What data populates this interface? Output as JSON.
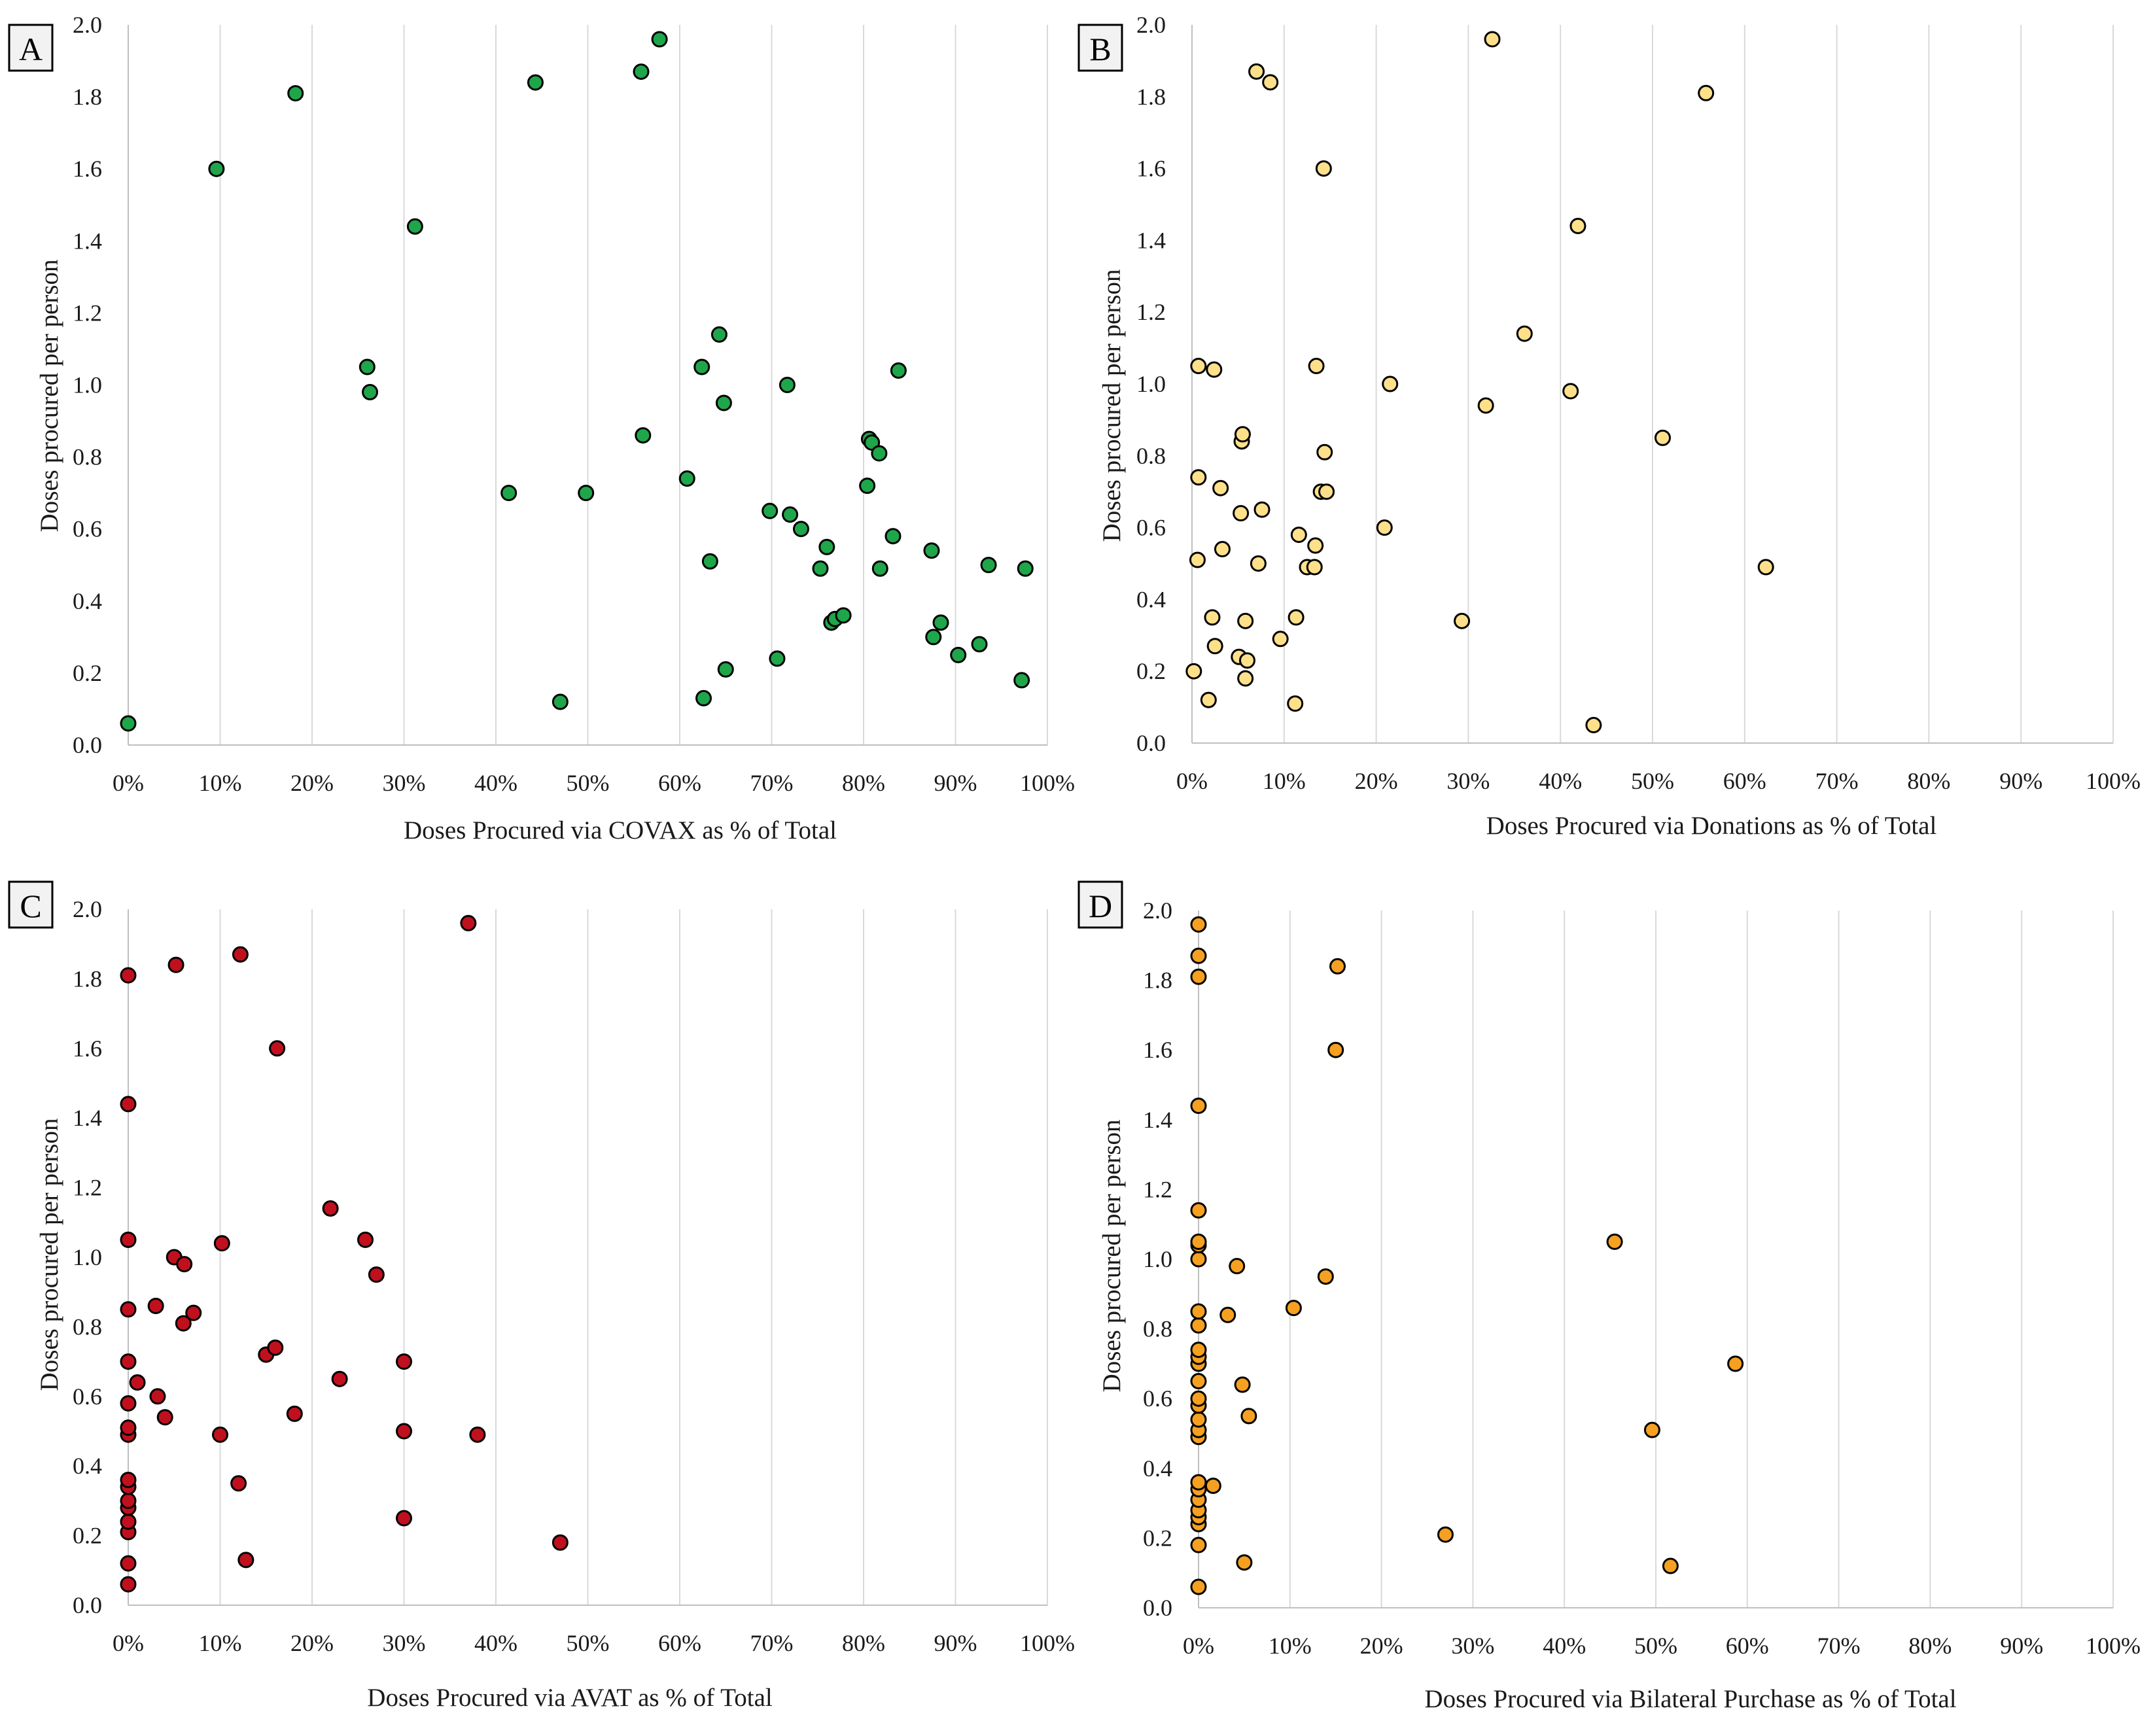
{
  "chart_data": [
    {
      "panel": "A",
      "type": "scatter",
      "xlabel": "Doses Procured via COVAX as % of Total",
      "ylabel": "Doses procured per person",
      "xlim": [
        0,
        100
      ],
      "ylim": [
        0,
        2.0
      ],
      "x_ticks": [
        "0%",
        "10%",
        "20%",
        "30%",
        "40%",
        "50%",
        "60%",
        "70%",
        "80%",
        "90%",
        "100%"
      ],
      "y_ticks": [
        "0.0",
        "0.2",
        "0.4",
        "0.6",
        "0.8",
        "1.0",
        "1.2",
        "1.4",
        "1.6",
        "1.8",
        "2.0"
      ],
      "grid": "vertical",
      "color": "#1fa64a",
      "points": [
        [
          0,
          0.06
        ],
        [
          9.6,
          1.6
        ],
        [
          18.2,
          1.81
        ],
        [
          26,
          1.05
        ],
        [
          26.3,
          0.98
        ],
        [
          31.2,
          1.44
        ],
        [
          41.4,
          0.7
        ],
        [
          44.3,
          1.84
        ],
        [
          47,
          0.12
        ],
        [
          49.8,
          0.7
        ],
        [
          55.8,
          1.87
        ],
        [
          56,
          0.86
        ],
        [
          57.8,
          1.96
        ],
        [
          60.8,
          0.74
        ],
        [
          62.4,
          1.05
        ],
        [
          62.6,
          0.13
        ],
        [
          63.3,
          0.51
        ],
        [
          64.3,
          1.14
        ],
        [
          64.8,
          0.95
        ],
        [
          65,
          0.21
        ],
        [
          69.8,
          0.65
        ],
        [
          70.6,
          0.24
        ],
        [
          71.7,
          1.0
        ],
        [
          72,
          0.64
        ],
        [
          73.2,
          0.6
        ],
        [
          75.3,
          0.49
        ],
        [
          76,
          0.55
        ],
        [
          76.5,
          0.34
        ],
        [
          76.9,
          0.35
        ],
        [
          77.8,
          0.36
        ],
        [
          80.4,
          0.72
        ],
        [
          80.6,
          0.85
        ],
        [
          80.9,
          0.84
        ],
        [
          81.7,
          0.81
        ],
        [
          81.8,
          0.49
        ],
        [
          83.2,
          0.58
        ],
        [
          83.8,
          1.04
        ],
        [
          87.4,
          0.54
        ],
        [
          87.6,
          0.3
        ],
        [
          88.4,
          0.34
        ],
        [
          90.3,
          0.25
        ],
        [
          92.6,
          0.28
        ],
        [
          93.6,
          0.5
        ],
        [
          97.2,
          0.18
        ],
        [
          97.6,
          0.49
        ]
      ]
    },
    {
      "panel": "B",
      "type": "scatter",
      "xlabel": "Doses Procured via Donations as % of Total",
      "ylabel": "Doses procured per person",
      "xlim": [
        0,
        100
      ],
      "ylim": [
        0,
        2.0
      ],
      "x_ticks": [
        "0%",
        "10%",
        "20%",
        "30%",
        "40%",
        "50%",
        "60%",
        "70%",
        "80%",
        "90%",
        "100%"
      ],
      "y_ticks": [
        "0.0",
        "0.2",
        "0.4",
        "0.6",
        "0.8",
        "1.0",
        "1.2",
        "1.4",
        "1.6",
        "1.8",
        "2.0"
      ],
      "grid": "vertical",
      "color": "#ffe08a",
      "points": [
        [
          0.2,
          0.2
        ],
        [
          0.6,
          0.51
        ],
        [
          0.7,
          0.74
        ],
        [
          0.7,
          1.05
        ],
        [
          1.8,
          0.12
        ],
        [
          2.2,
          0.35
        ],
        [
          2.4,
          1.04
        ],
        [
          2.5,
          0.27
        ],
        [
          3.1,
          0.71
        ],
        [
          3.3,
          0.54
        ],
        [
          5.1,
          0.24
        ],
        [
          5.3,
          0.64
        ],
        [
          5.4,
          0.84
        ],
        [
          5.5,
          0.86
        ],
        [
          5.8,
          0.34
        ],
        [
          5.8,
          0.18
        ],
        [
          6,
          0.23
        ],
        [
          7,
          1.87
        ],
        [
          7.2,
          0.5
        ],
        [
          7.6,
          0.65
        ],
        [
          8.5,
          1.84
        ],
        [
          9.6,
          0.29
        ],
        [
          11.2,
          0.11
        ],
        [
          11.3,
          0.35
        ],
        [
          11.6,
          0.58
        ],
        [
          12.5,
          0.49
        ],
        [
          13.3,
          0.49
        ],
        [
          13.4,
          0.55
        ],
        [
          13.5,
          1.05
        ],
        [
          14,
          0.7
        ],
        [
          14.3,
          1.6
        ],
        [
          14.4,
          0.81
        ],
        [
          14.6,
          0.7
        ],
        [
          20.9,
          0.6
        ],
        [
          21.5,
          1.0
        ],
        [
          29.3,
          0.34
        ],
        [
          31.9,
          0.94
        ],
        [
          32.6,
          1.96
        ],
        [
          36.1,
          1.14
        ],
        [
          41.1,
          0.98
        ],
        [
          41.9,
          1.44
        ],
        [
          43.6,
          0.05
        ],
        [
          51.1,
          0.85
        ],
        [
          55.8,
          1.81
        ],
        [
          62.3,
          0.49
        ]
      ]
    },
    {
      "panel": "C",
      "type": "scatter",
      "xlabel": "Doses Procured via AVAT as % of Total",
      "ylabel": "Doses procured per person",
      "xlim": [
        0,
        100
      ],
      "ylim": [
        0,
        2.0
      ],
      "x_ticks": [
        "0%",
        "10%",
        "20%",
        "30%",
        "40%",
        "50%",
        "60%",
        "70%",
        "80%",
        "90%",
        "100%"
      ],
      "y_ticks": [
        "0.0",
        "0.2",
        "0.4",
        "0.6",
        "0.8",
        "1.0",
        "1.2",
        "1.4",
        "1.6",
        "1.8",
        "2.0"
      ],
      "grid": "vertical",
      "color": "#c0101e",
      "points": [
        [
          0,
          0.06
        ],
        [
          0,
          0.12
        ],
        [
          0,
          0.21
        ],
        [
          0,
          0.24
        ],
        [
          0,
          0.28
        ],
        [
          0,
          0.3
        ],
        [
          0,
          0.34
        ],
        [
          0,
          0.36
        ],
        [
          0,
          0.49
        ],
        [
          0,
          0.51
        ],
        [
          0,
          0.58
        ],
        [
          0,
          0.7
        ],
        [
          0,
          0.85
        ],
        [
          0,
          1.05
        ],
        [
          0,
          1.44
        ],
        [
          0,
          1.81
        ],
        [
          1,
          0.64
        ],
        [
          3,
          0.86
        ],
        [
          3.2,
          0.6
        ],
        [
          4,
          0.54
        ],
        [
          5,
          1.0
        ],
        [
          5.2,
          1.84
        ],
        [
          6,
          0.81
        ],
        [
          6.1,
          0.98
        ],
        [
          7.1,
          0.84
        ],
        [
          10,
          0.49
        ],
        [
          10.2,
          1.04
        ],
        [
          12,
          0.35
        ],
        [
          12.2,
          1.87
        ],
        [
          12.8,
          0.13
        ],
        [
          15,
          0.72
        ],
        [
          16,
          0.74
        ],
        [
          16.2,
          1.6
        ],
        [
          18.1,
          0.55
        ],
        [
          22,
          1.14
        ],
        [
          23,
          0.65
        ],
        [
          25.8,
          1.05
        ],
        [
          27,
          0.95
        ],
        [
          30,
          0.7
        ],
        [
          30,
          0.5
        ],
        [
          30,
          0.25
        ],
        [
          37,
          1.96
        ],
        [
          38,
          0.49
        ],
        [
          47,
          0.18
        ]
      ]
    },
    {
      "panel": "D",
      "type": "scatter",
      "xlabel": "Doses Procured via Bilateral Purchase as % of Total",
      "ylabel": "Doses procured per person",
      "xlim": [
        0,
        100
      ],
      "ylim": [
        0,
        2.0
      ],
      "x_ticks": [
        "0%",
        "10%",
        "20%",
        "30%",
        "40%",
        "50%",
        "60%",
        "70%",
        "80%",
        "90%",
        "100%"
      ],
      "y_ticks": [
        "0.0",
        "0.2",
        "0.4",
        "0.6",
        "0.8",
        "1.0",
        "1.2",
        "1.4",
        "1.6",
        "1.8",
        "2.0"
      ],
      "grid": "vertical",
      "color": "#f5a020",
      "points": [
        [
          0,
          0.06
        ],
        [
          0,
          0.18
        ],
        [
          0,
          0.24
        ],
        [
          0,
          0.26
        ],
        [
          0,
          0.28
        ],
        [
          0,
          0.31
        ],
        [
          0,
          0.34
        ],
        [
          0,
          0.36
        ],
        [
          0,
          0.49
        ],
        [
          0,
          0.51
        ],
        [
          0,
          0.54
        ],
        [
          0,
          0.58
        ],
        [
          0,
          0.6
        ],
        [
          0,
          0.65
        ],
        [
          0,
          0.7
        ],
        [
          0,
          0.72
        ],
        [
          0,
          0.74
        ],
        [
          0,
          0.81
        ],
        [
          0,
          0.85
        ],
        [
          0,
          1.0
        ],
        [
          0,
          1.04
        ],
        [
          0,
          1.05
        ],
        [
          0,
          1.14
        ],
        [
          0,
          1.44
        ],
        [
          0,
          1.81
        ],
        [
          0,
          1.87
        ],
        [
          0,
          1.96
        ],
        [
          1.6,
          0.35
        ],
        [
          3.2,
          0.84
        ],
        [
          4.2,
          0.98
        ],
        [
          4.8,
          0.64
        ],
        [
          5,
          0.13
        ],
        [
          5.5,
          0.55
        ],
        [
          10.4,
          0.86
        ],
        [
          13.9,
          0.95
        ],
        [
          15,
          1.6
        ],
        [
          15.2,
          1.84
        ],
        [
          27,
          0.21
        ],
        [
          45.5,
          1.05
        ],
        [
          49.6,
          0.51
        ],
        [
          51.6,
          0.12
        ],
        [
          58.7,
          0.7
        ]
      ]
    }
  ]
}
